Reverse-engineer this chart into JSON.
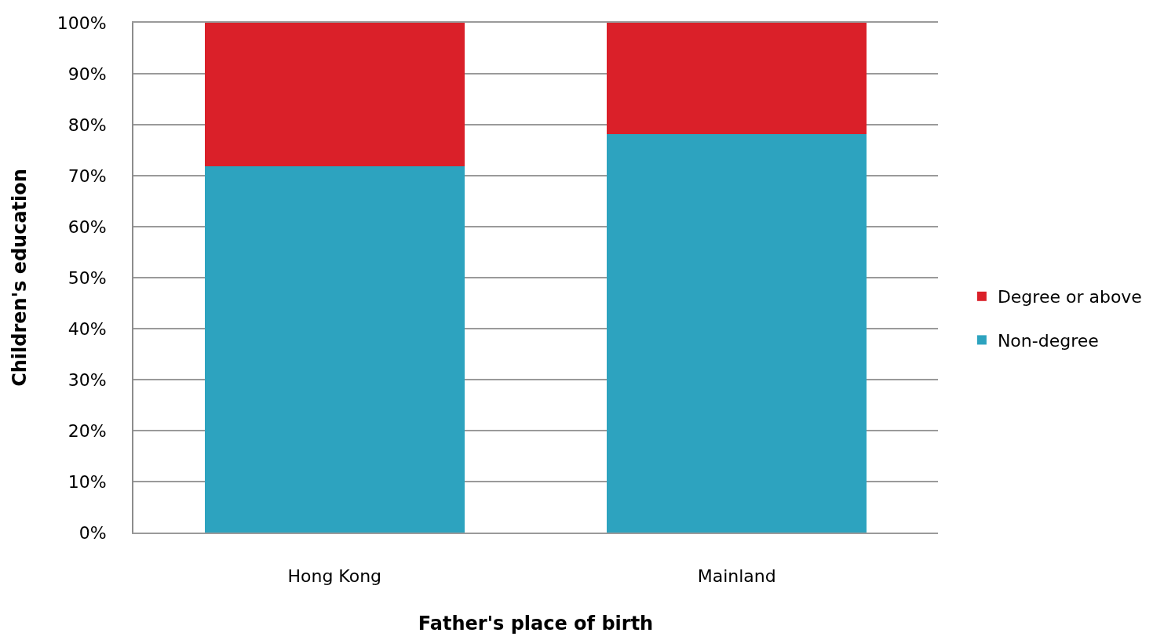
{
  "chart_data": {
    "type": "bar",
    "stacked": true,
    "xlabel": "Father's place of birth",
    "ylabel": "Children's education",
    "categories": [
      "Hong Kong",
      "Mainland"
    ],
    "series": [
      {
        "name": "Non-degree",
        "color": "#2da3bf",
        "values": [
          71.8,
          78.2
        ]
      },
      {
        "name": "Degree or above",
        "color": "#da2029",
        "values": [
          28.2,
          21.8
        ]
      }
    ],
    "ylim": [
      0,
      100
    ],
    "yticks": [
      {
        "value": 0,
        "label": "0%"
      },
      {
        "value": 10,
        "label": "10%"
      },
      {
        "value": 20,
        "label": "20%"
      },
      {
        "value": 30,
        "label": "30%"
      },
      {
        "value": 40,
        "label": "40%"
      },
      {
        "value": 50,
        "label": "50%"
      },
      {
        "value": 60,
        "label": "60%"
      },
      {
        "value": 70,
        "label": "70%"
      },
      {
        "value": 80,
        "label": "80%"
      },
      {
        "value": 90,
        "label": "90%"
      },
      {
        "value": 100,
        "label": "100%"
      }
    ],
    "grid": "y",
    "legend": "right"
  }
}
